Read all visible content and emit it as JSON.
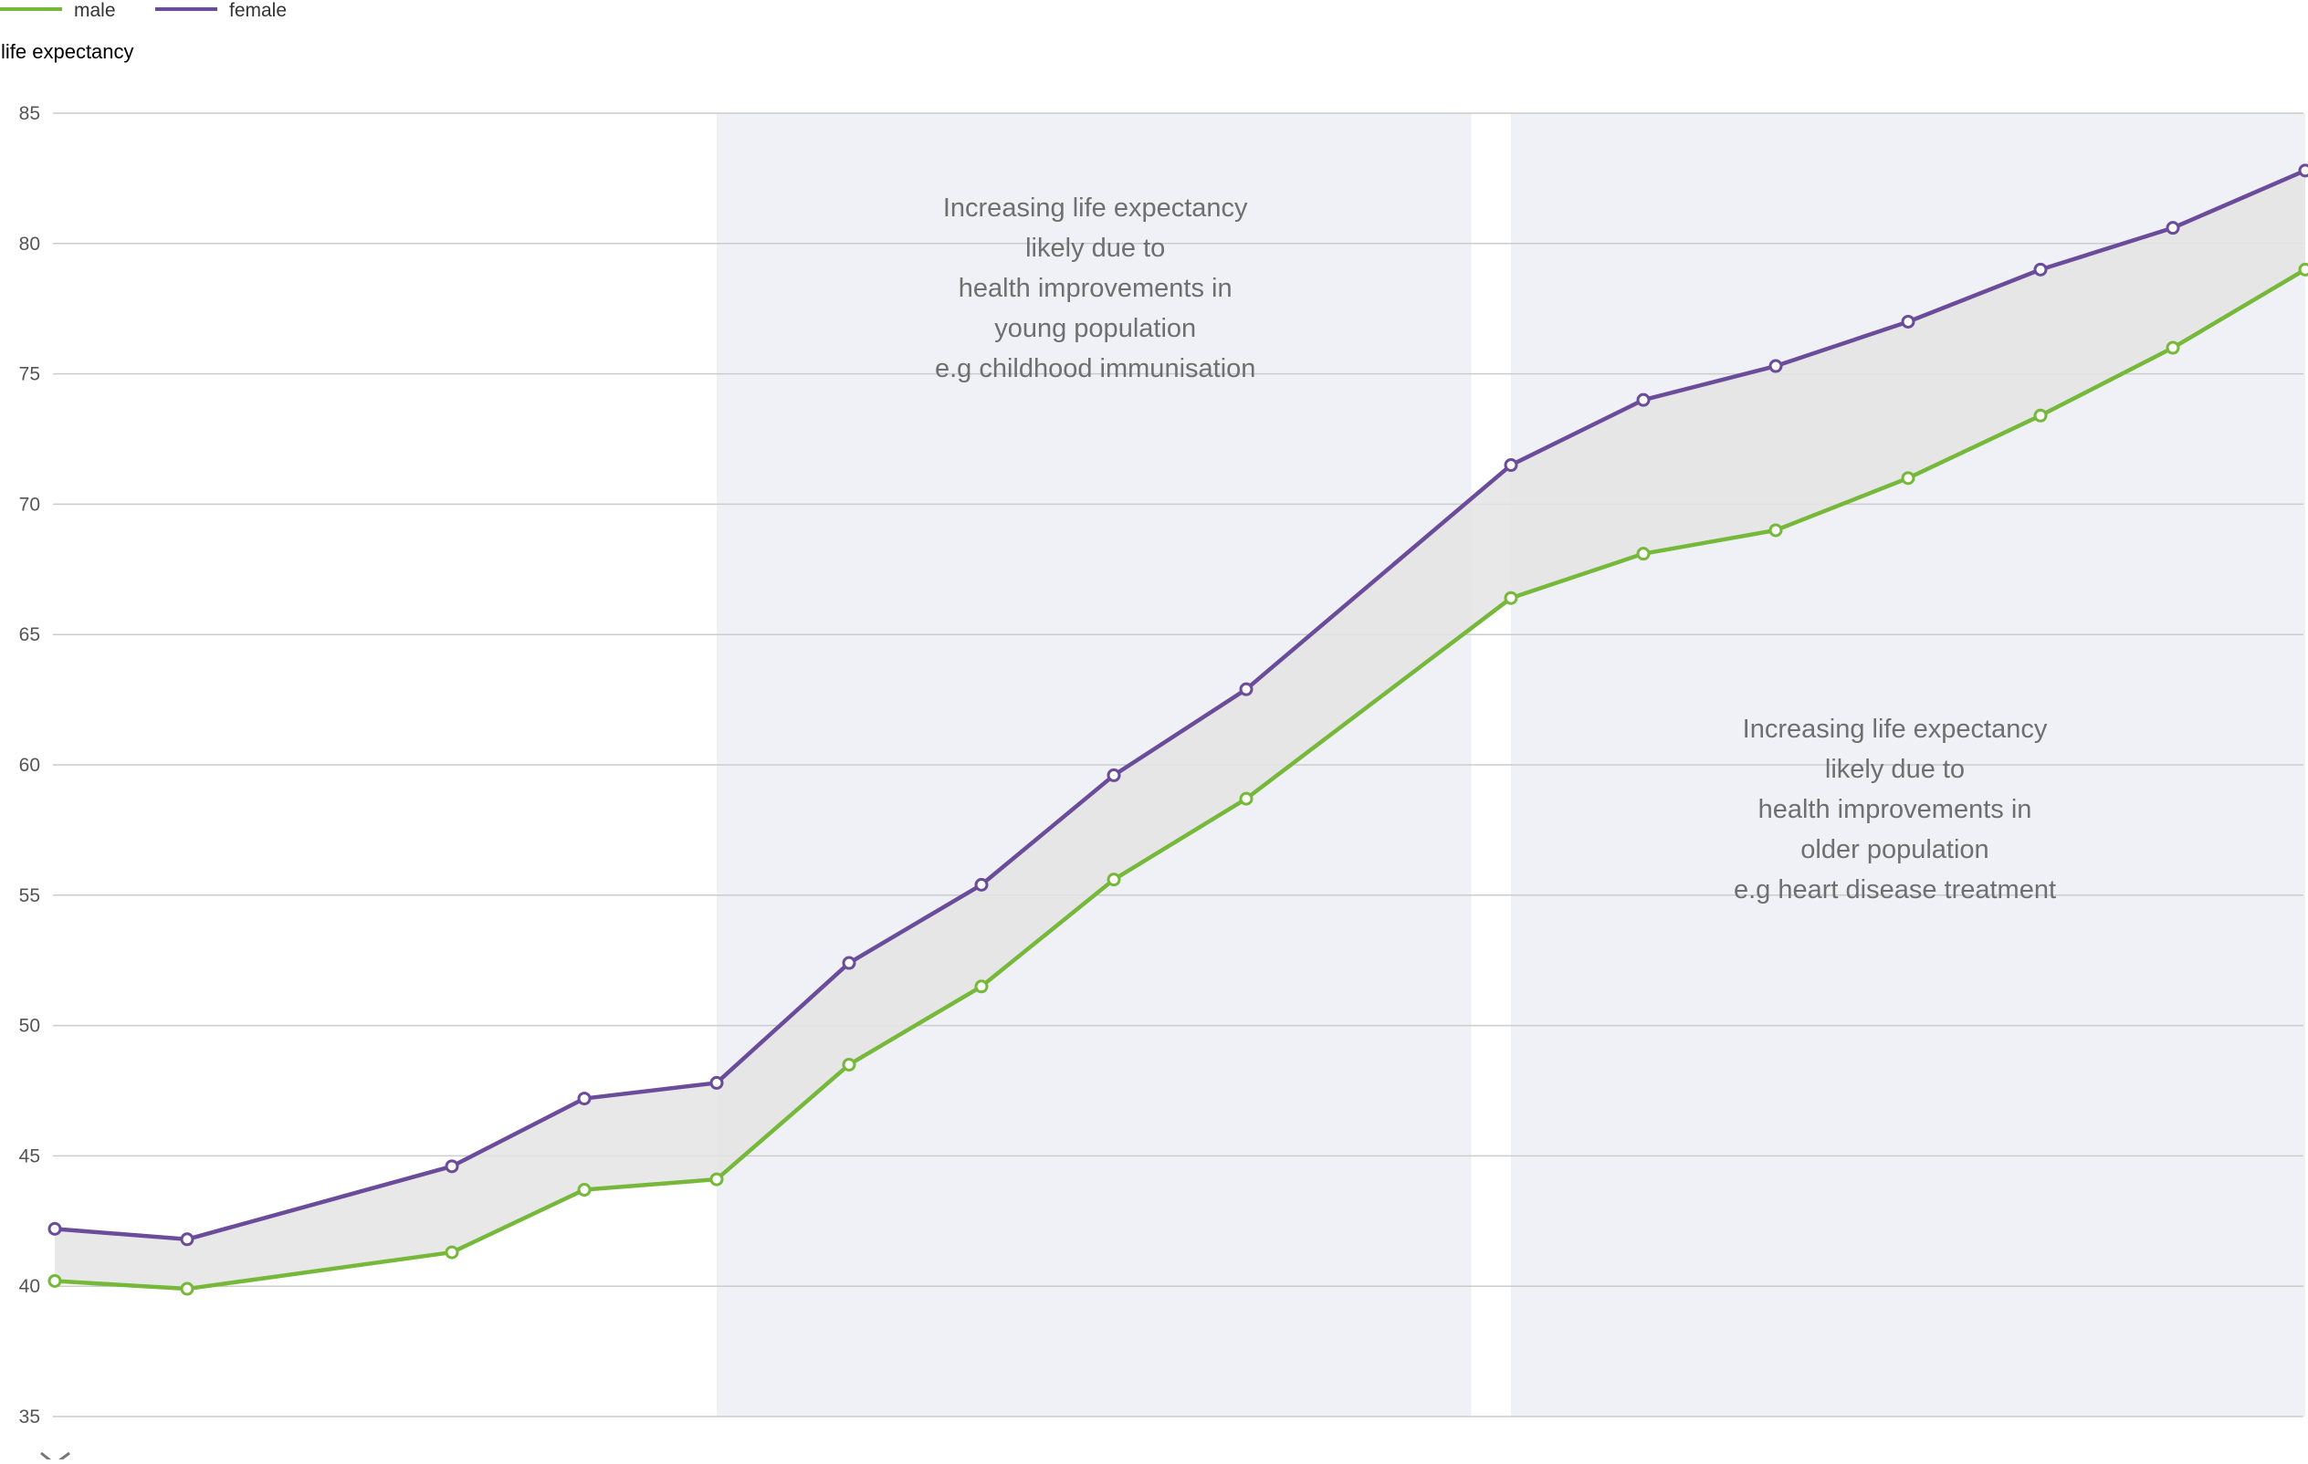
{
  "chart_data": {
    "type": "line",
    "title": "",
    "xlabel": "",
    "ylabel": "life expectancy",
    "ylim": [
      35,
      85
    ],
    "yticks": [
      35,
      40,
      45,
      50,
      55,
      60,
      65,
      70,
      75,
      80,
      85
    ],
    "grid": true,
    "legend_placement": "top-left",
    "x": [
      0,
      1,
      3,
      4,
      5,
      6,
      7,
      8,
      9,
      11,
      12,
      13,
      14,
      15,
      16,
      17
    ],
    "series": [
      {
        "name": "male",
        "color": "#76b83a",
        "values": [
          40.2,
          39.9,
          41.3,
          43.7,
          44.1,
          48.5,
          51.5,
          55.6,
          58.7,
          66.4,
          68.1,
          69.0,
          71.0,
          73.4,
          76.0,
          79.0
        ]
      },
      {
        "name": "female",
        "color": "#6b4c9a",
        "values": [
          42.2,
          41.8,
          44.6,
          47.2,
          47.8,
          52.4,
          55.4,
          59.6,
          62.9,
          71.5,
          74.0,
          75.3,
          77.0,
          79.0,
          80.6,
          82.8
        ]
      }
    ],
    "shaded_regions": [
      {
        "x_start": 5,
        "x_end": 10.7,
        "color": "#f0f1f6"
      },
      {
        "x_start": 11,
        "x_end": 17,
        "color": "#f0f1f6"
      }
    ],
    "gap_fill_color": "#e4e4e4",
    "grid_color": "#cccccc",
    "annotations": [
      {
        "lines": [
          "Increasing life expectancy",
          "likely due to",
          "health improvements in",
          "young population",
          "e.g childhood immunisation"
        ],
        "anchor_x": 7.86,
        "anchor_y": 81.4
      },
      {
        "lines": [
          "Increasing life expectancy",
          "likely due to",
          "health improvements in",
          "older population",
          "e.g heart disease treatment"
        ],
        "anchor_x": 13.9,
        "anchor_y": 61.4
      }
    ]
  }
}
